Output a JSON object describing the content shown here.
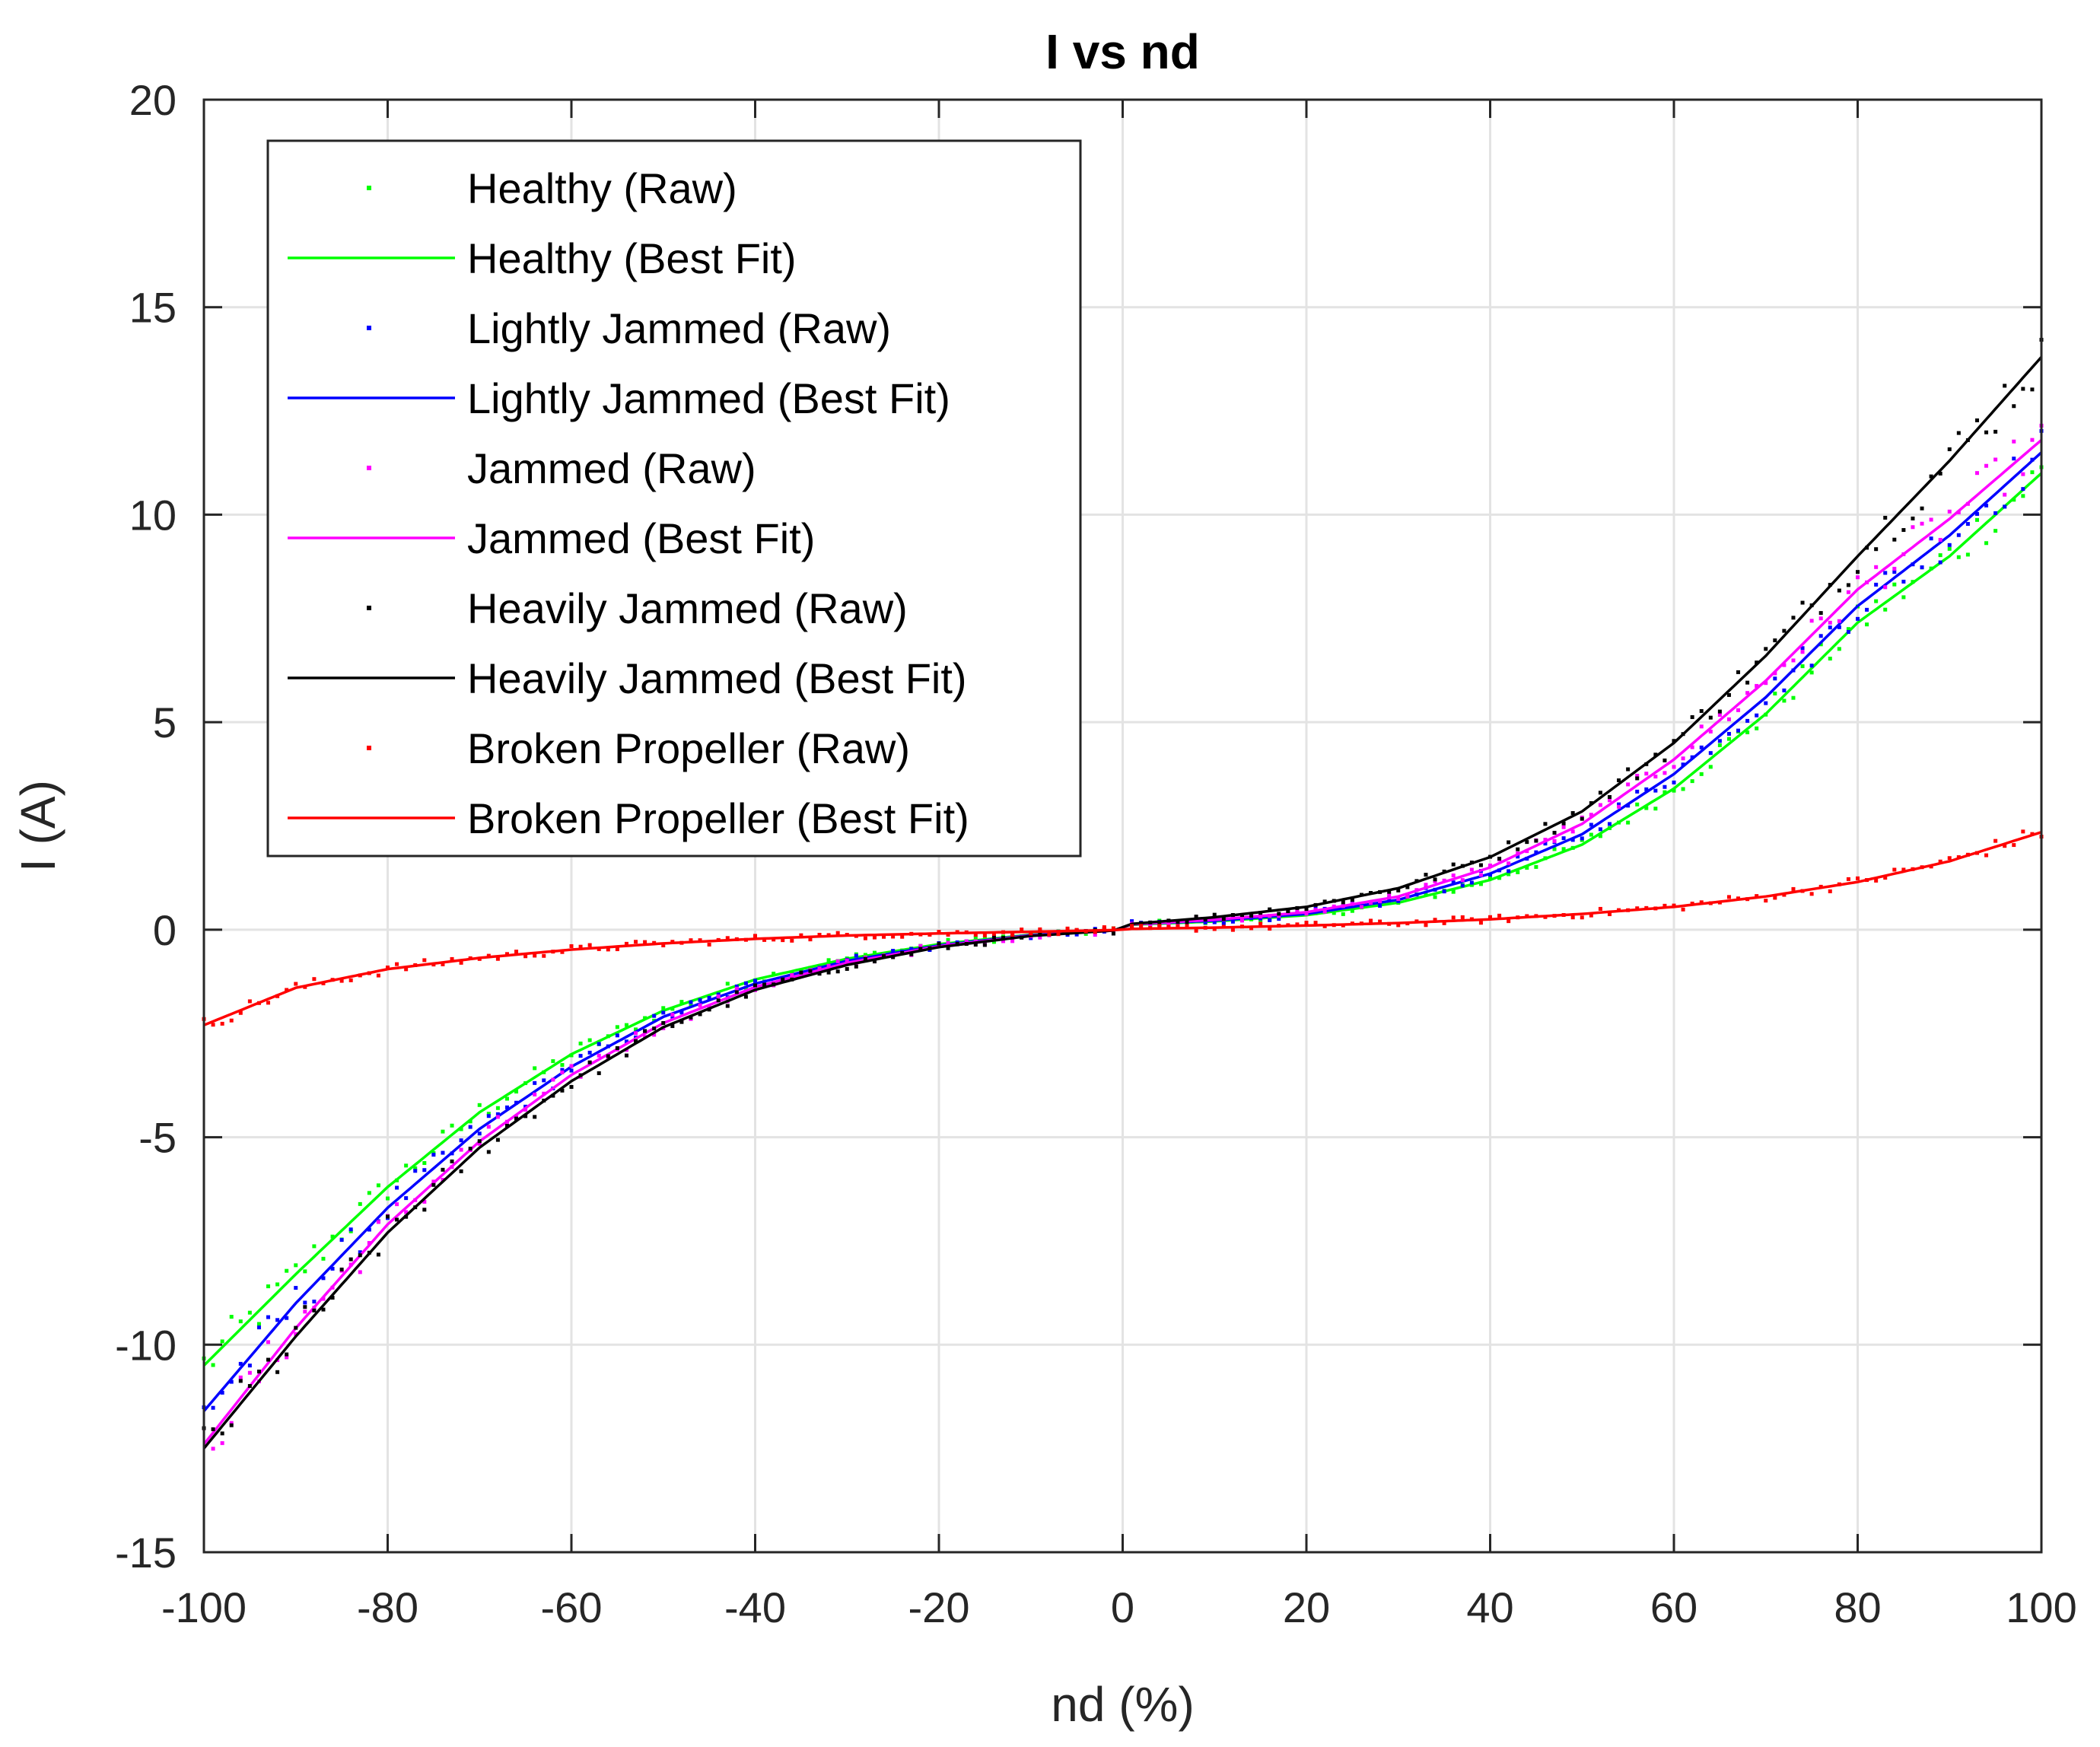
{
  "chart_data": {
    "type": "line",
    "title": "I vs nd",
    "xlabel": "nd (%)",
    "ylabel": "I (A)",
    "xlim": [
      -100,
      100
    ],
    "ylim": [
      -15,
      20
    ],
    "xticks": [
      -100,
      -80,
      -60,
      -40,
      -20,
      0,
      20,
      40,
      60,
      80,
      100
    ],
    "yticks": [
      -15,
      -10,
      -5,
      0,
      5,
      10,
      15,
      20
    ],
    "grid": true,
    "legend_position": "top-left",
    "x": [
      -100,
      -90,
      -80,
      -70,
      -60,
      -50,
      -40,
      -30,
      -20,
      -10,
      -1,
      1,
      10,
      20,
      30,
      40,
      50,
      60,
      70,
      80,
      90,
      100
    ],
    "series": [
      {
        "name": "Healthy (Best Fit)",
        "raw_name": "Healthy (Raw)",
        "color": "#00ff00",
        "values": [
          -10.5,
          -8.3,
          -6.2,
          -4.4,
          -3.0,
          -1.95,
          -1.2,
          -0.7,
          -0.35,
          -0.12,
          -0.02,
          0.12,
          0.2,
          0.35,
          0.65,
          1.2,
          2.05,
          3.4,
          5.2,
          7.4,
          9.0,
          11.0
        ]
      },
      {
        "name": "Lightly Jammed (Best Fit)",
        "raw_name": "Lightly Jammed (Raw)",
        "color": "#0000ff",
        "values": [
          -11.6,
          -9.0,
          -6.7,
          -4.8,
          -3.3,
          -2.1,
          -1.3,
          -0.75,
          -0.38,
          -0.13,
          -0.02,
          0.13,
          0.22,
          0.38,
          0.72,
          1.35,
          2.3,
          3.75,
          5.6,
          7.8,
          9.5,
          11.5
        ]
      },
      {
        "name": "Jammed (Best Fit)",
        "raw_name": "Jammed (Raw)",
        "color": "#ff00ff",
        "values": [
          -12.4,
          -9.6,
          -7.1,
          -5.1,
          -3.5,
          -2.25,
          -1.38,
          -0.8,
          -0.4,
          -0.14,
          -0.02,
          0.13,
          0.24,
          0.42,
          0.8,
          1.5,
          2.55,
          4.1,
          6.0,
          8.2,
          9.9,
          11.8
        ]
      },
      {
        "name": "Heavily Jammed (Best Fit)",
        "raw_name": "Heavily Jammed (Raw)",
        "color": "#000000",
        "values": [
          -12.5,
          -9.8,
          -7.3,
          -5.25,
          -3.65,
          -2.35,
          -1.45,
          -0.85,
          -0.42,
          -0.15,
          -0.02,
          0.14,
          0.3,
          0.55,
          1.0,
          1.75,
          2.85,
          4.5,
          6.6,
          9.0,
          11.3,
          13.8
        ]
      },
      {
        "name": "Broken Propeller (Best Fit)",
        "raw_name": "Broken Propeller (Raw)",
        "color": "#ff0000",
        "values": [
          -2.3,
          -1.4,
          -0.95,
          -0.68,
          -0.48,
          -0.33,
          -0.22,
          -0.14,
          -0.09,
          -0.05,
          -0.01,
          0.02,
          0.05,
          0.1,
          0.16,
          0.25,
          0.38,
          0.55,
          0.8,
          1.15,
          1.65,
          2.35
        ]
      }
    ]
  }
}
